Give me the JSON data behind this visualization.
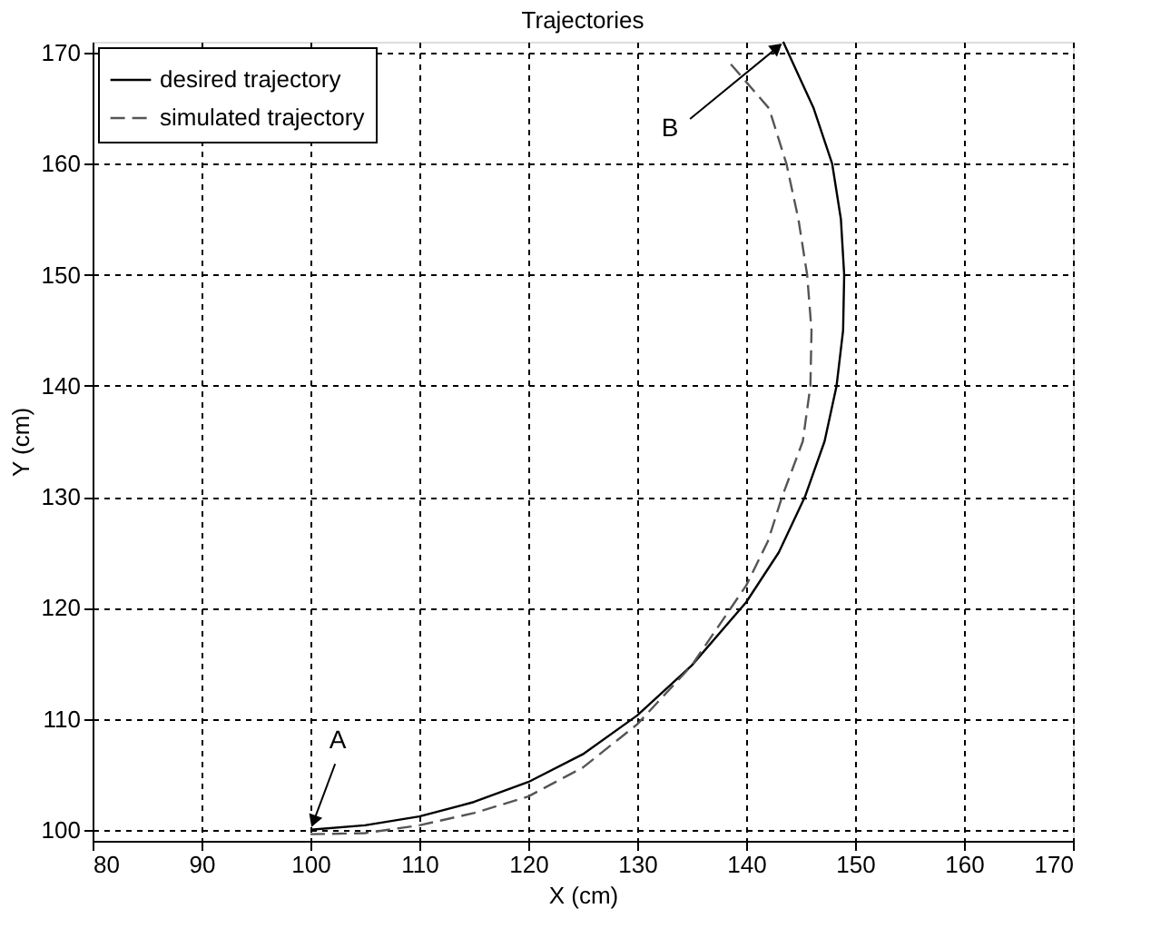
{
  "chart_data": {
    "type": "line",
    "title": "Trajectories",
    "xlabel": "X (cm)",
    "ylabel": "Y (cm)",
    "xlim": [
      80,
      170
    ],
    "ylim": [
      99,
      171
    ],
    "xticks": [
      80,
      90,
      100,
      110,
      120,
      130,
      140,
      150,
      160,
      170
    ],
    "yticks": [
      100,
      110,
      120,
      130,
      140,
      150,
      160,
      170
    ],
    "grid": true,
    "legend": "top left",
    "marker": "none",
    "series": [
      {
        "name": "desired trajectory",
        "color": "#000000",
        "line_style": "solid",
        "x": [
          100,
          105,
          110,
          115,
          120,
          125,
          130,
          135,
          140,
          143,
          145.4,
          147.2,
          148.3,
          148.9,
          149,
          148.7,
          147.9,
          146.2,
          144.8,
          143.4
        ],
        "values": [
          100,
          100.4,
          101.2,
          102.5,
          104.3,
          106.8,
          110.3,
          114.8,
          120.5,
          125,
          130,
          135,
          140,
          145,
          150,
          155,
          160,
          165,
          168,
          171
        ]
      },
      {
        "name": "simulated trajectory",
        "color": "#555555",
        "line_style": "dashed",
        "x": [
          100,
          105,
          110,
          115,
          120,
          125,
          130,
          135,
          140,
          142,
          143.3,
          145.2,
          145.9,
          146,
          145.6,
          144.8,
          143.7,
          142.1,
          138.4
        ],
        "values": [
          99.6,
          99.7,
          100.4,
          101.5,
          103,
          105.6,
          109.5,
          114.8,
          122,
          126,
          130,
          135,
          140,
          145,
          150,
          155,
          160,
          165,
          169.2
        ]
      }
    ],
    "annotations": [
      {
        "text": "A",
        "x": 100,
        "y": 100
      },
      {
        "text": "B",
        "x": 143.5,
        "y": 171
      }
    ]
  }
}
